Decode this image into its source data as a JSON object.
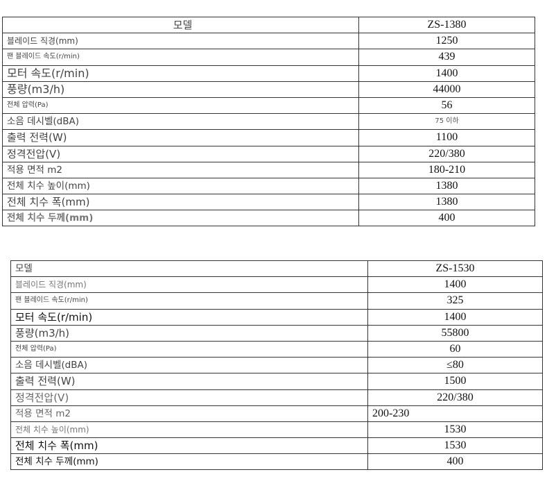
{
  "tables": [
    {
      "rows": [
        {
          "label": "모델",
          "value": "ZS-1380"
        },
        {
          "label": "블레이드 직경(mm)",
          "value": "1250"
        },
        {
          "label": "팬 블레이드 속도(r/min)",
          "value": "439"
        },
        {
          "label": "모터 속도(r/min)",
          "value": "1400"
        },
        {
          "label": "풍량(m3/h)",
          "value": "44000"
        },
        {
          "label": "전체 압력(Pa)",
          "value": "56"
        },
        {
          "label": "소음 데시벨(dBA)",
          "value": "75 이하"
        },
        {
          "label": "출력 전력(W)",
          "value": "1100"
        },
        {
          "label": "정격전압(V)",
          "value": "220/380"
        },
        {
          "label": "적용 면적 m2",
          "value": "180-210"
        },
        {
          "label": "전체 치수 높이(mm)",
          "value": "1380"
        },
        {
          "label": "전체 치수 폭(mm)",
          "value": "1380"
        },
        {
          "label": "전체 치수 두께(mm)",
          "value": "400"
        }
      ]
    },
    {
      "rows": [
        {
          "label": "모델",
          "value": "ZS-1530"
        },
        {
          "label": "블레이드 직경(mm)",
          "value": "1400"
        },
        {
          "label": "팬 블레이드 속도(r/min)",
          "value": "325"
        },
        {
          "label": "모터 속도(r/min)",
          "value": "1400"
        },
        {
          "label": "풍량(m3/h)",
          "value": "55800"
        },
        {
          "label": "전체 압력(Pa)",
          "value": "60"
        },
        {
          "label": "소음 데시벨(dBA)",
          "value": "≤80"
        },
        {
          "label": "출력 전력(W)",
          "value": "1500"
        },
        {
          "label": "정격전압(V)",
          "value": "220/380"
        },
        {
          "label": "적용 면적 m2",
          "value": "200-230"
        },
        {
          "label": "전체 치수 높이(mm)",
          "value": "1530"
        },
        {
          "label": "전체 치수 폭(mm)",
          "value": "1530"
        },
        {
          "label": "전체 치수 두께(mm)",
          "value": "400"
        }
      ]
    }
  ]
}
